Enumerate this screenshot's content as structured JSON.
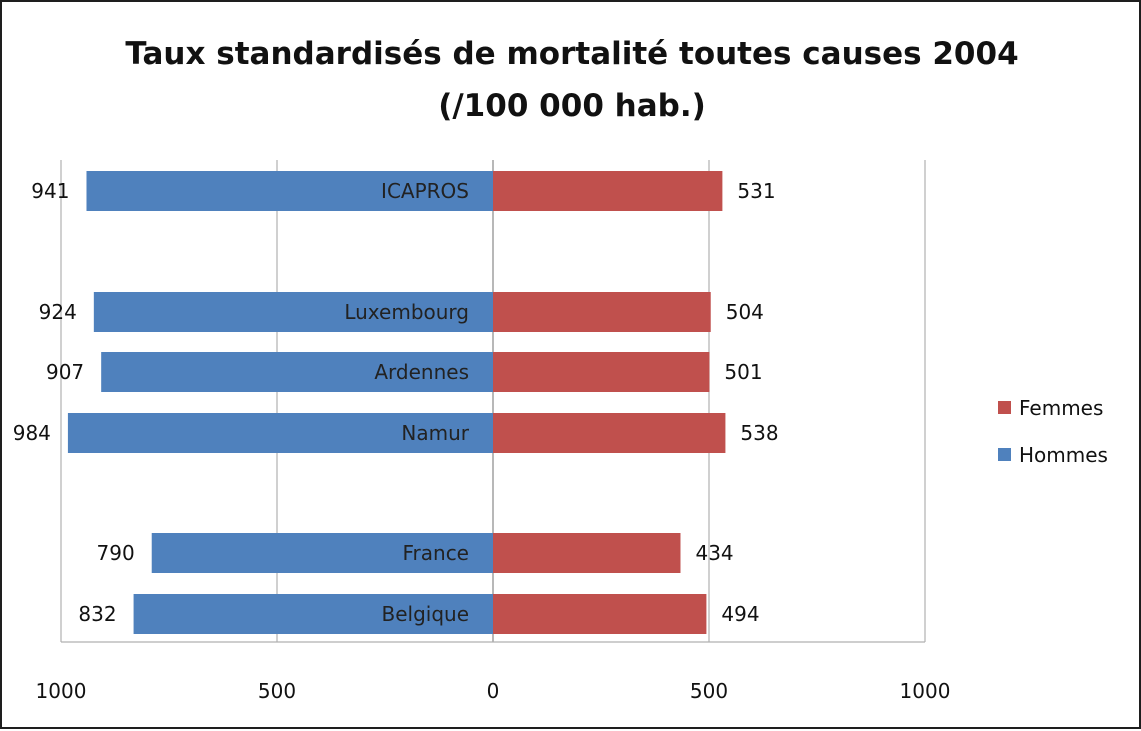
{
  "chart_data": {
    "type": "bar",
    "orientation": "horizontal",
    "layout": "butterfly",
    "title": "Taux standardisés de mortalité toutes causes 2004",
    "subtitle": "(/100 000 hab.)",
    "categories": [
      "ICAPROS",
      "Luxembourg",
      "Ardennes",
      "Namur",
      "France",
      "Belgique"
    ],
    "series": [
      {
        "name": "Hommes",
        "color": "#4f81bd",
        "side": "left",
        "values": [
          941,
          924,
          907,
          984,
          790,
          832
        ]
      },
      {
        "name": "Femmes",
        "color": "#c0504d",
        "side": "right",
        "values": [
          531,
          504,
          501,
          538,
          434,
          494
        ]
      }
    ],
    "xlim": [
      -1000,
      1000
    ],
    "x_ticks": [
      -1000,
      -500,
      0,
      500,
      1000
    ],
    "x_tick_labels": [
      "1000",
      "500",
      "0",
      "500",
      "1000"
    ],
    "grid": true,
    "legend_position": "right",
    "legend_order": [
      "Femmes",
      "Hommes"
    ]
  }
}
